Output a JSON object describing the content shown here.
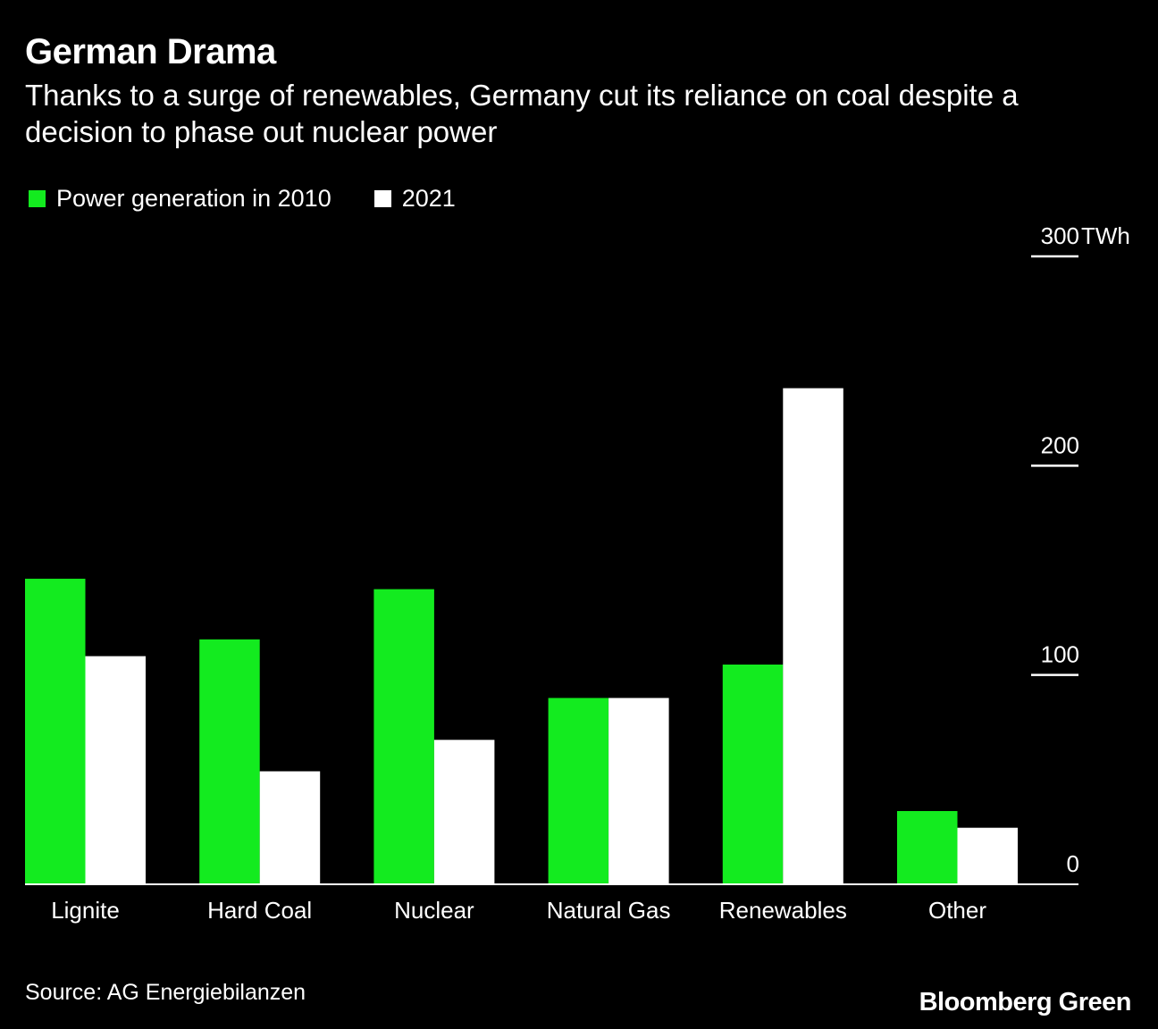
{
  "header": {
    "title": "German Drama",
    "subtitle": "Thanks to a surge of renewables, Germany cut its reliance on coal despite a decision to phase out nuclear power"
  },
  "legend": {
    "items": [
      {
        "label": "Power generation in 2010",
        "color": "#13eb1f"
      },
      {
        "label": "2021",
        "color": "#ffffff"
      }
    ]
  },
  "footer": {
    "source": "Source: AG Energiebilanzen",
    "brand": "Bloomberg Green"
  },
  "chart_data": {
    "type": "bar",
    "title": "German Drama",
    "xlabel": "",
    "ylabel": "",
    "unit": "TWh",
    "ylim": [
      0,
      300
    ],
    "yticks": [
      0,
      100,
      200,
      300
    ],
    "ytick_labels": [
      "0",
      "100",
      "200",
      "300"
    ],
    "categories": [
      "Lignite",
      "Hard Coal",
      "Nuclear",
      "Natural Gas",
      "Renewables",
      "Other"
    ],
    "series": [
      {
        "name": "Power generation in 2010",
        "color": "#13eb1f",
        "values": [
          146,
          117,
          141,
          89,
          105,
          35
        ]
      },
      {
        "name": "2021",
        "color": "#ffffff",
        "values": [
          109,
          54,
          69,
          89,
          237,
          27
        ]
      }
    ],
    "legend_position": "top-left",
    "axis_position": "right"
  }
}
